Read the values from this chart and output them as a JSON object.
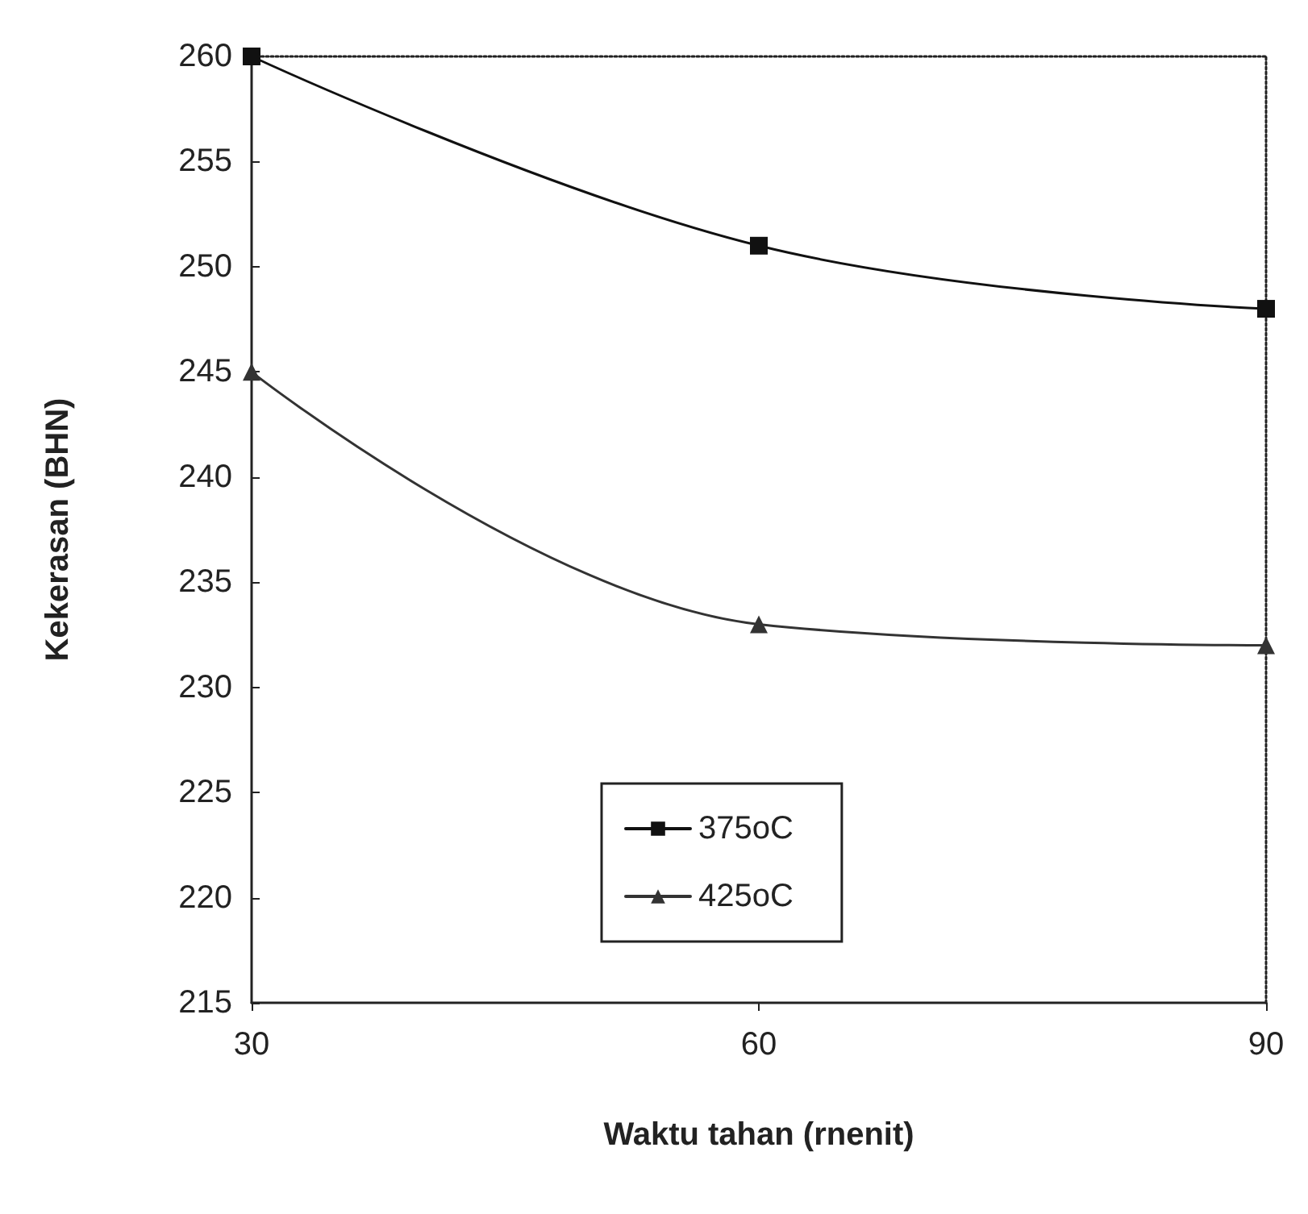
{
  "chart_data": {
    "type": "line",
    "xlabel": "Waktu tahan (rnenit)",
    "ylabel": "Kekerasan (BHN)",
    "x": [
      30,
      60,
      90
    ],
    "series": [
      {
        "name": "375oC",
        "color": "#111111",
        "values": [
          260,
          251,
          248
        ],
        "marker": "square"
      },
      {
        "name": "425oC",
        "color": "#333333",
        "values": [
          245,
          233,
          232
        ],
        "marker": "triangle"
      }
    ],
    "xlim": [
      30,
      90
    ],
    "xticks": [
      30,
      60,
      90
    ],
    "ylim": [
      215,
      260
    ],
    "yticks": [
      215,
      220,
      225,
      230,
      235,
      240,
      245,
      250,
      255,
      260
    ],
    "grid": false,
    "legend": "bottom",
    "line_style": "solid"
  }
}
